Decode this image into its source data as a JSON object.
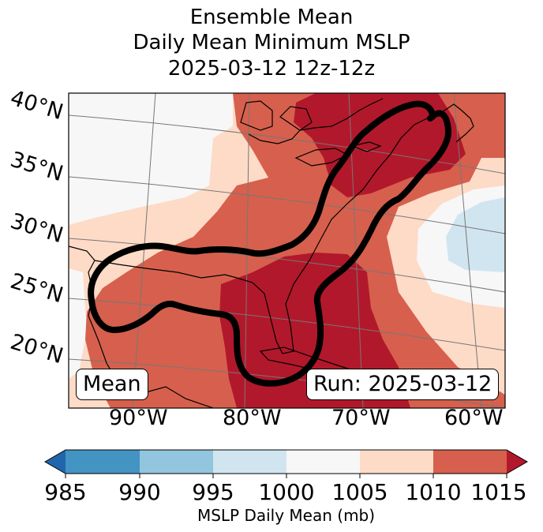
{
  "title": {
    "line1": "Ensemble Mean",
    "line2": "Daily Mean Minimum MSLP",
    "line3": "2025-03-12 12z-12z"
  },
  "map": {
    "lat_labels": [
      "40°N",
      "35°N",
      "30°N",
      "25°N",
      "20°N"
    ],
    "lon_labels": [
      "90°W",
      "80°W",
      "70°W",
      "60°W"
    ],
    "mean_label": "Mean",
    "run_label": "Run: 2025-03-12"
  },
  "colorbar": {
    "ticks": [
      "985",
      "990",
      "995",
      "1000",
      "1005",
      "1010",
      "1015"
    ],
    "label": "MSLP Daily Mean (mb)",
    "colors": [
      "#2166ac",
      "#4393c3",
      "#92c5de",
      "#d1e5f0",
      "#f7f7f7",
      "#fddbc7",
      "#d6604d",
      "#b2182b"
    ]
  }
}
